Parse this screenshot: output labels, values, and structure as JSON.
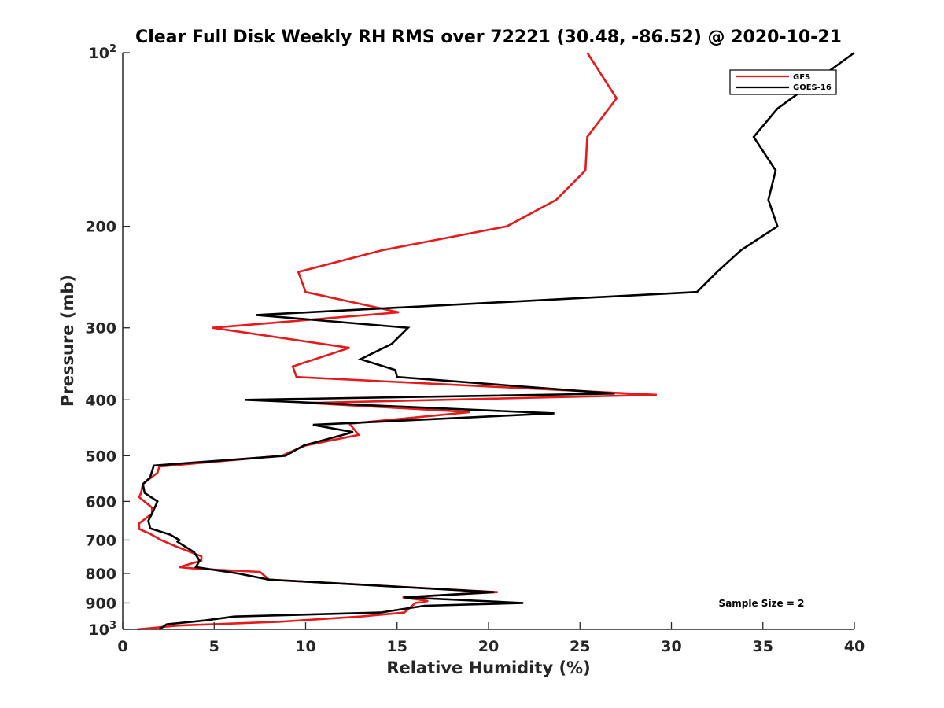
{
  "chart_data": {
    "type": "line",
    "title": "Clear Full Disk Weekly RH RMS over 72221 (30.48, -86.52) @ 2020-10-21",
    "xlabel": "Relative Humidity (%)",
    "ylabel": "Pressure (mb)",
    "xlim": [
      0,
      40
    ],
    "ylim": [
      1000,
      100
    ],
    "yscale": "log",
    "y_reversed": true,
    "grid": false,
    "legend_position": "top-right",
    "x_ticks": [
      0,
      5,
      10,
      15,
      20,
      25,
      30,
      35,
      40
    ],
    "x_tick_labels": [
      "0",
      "5",
      "10",
      "15",
      "20",
      "25",
      "30",
      "35",
      "40"
    ],
    "y_ticks": [
      1000,
      900,
      800,
      700,
      600,
      500,
      400,
      300,
      200,
      100
    ],
    "y_tick_labels": [
      {
        "base": "10",
        "exp": "3"
      },
      {
        "base": "900",
        "exp": ""
      },
      {
        "base": "800",
        "exp": ""
      },
      {
        "base": "700",
        "exp": ""
      },
      {
        "base": "600",
        "exp": ""
      },
      {
        "base": "500",
        "exp": ""
      },
      {
        "base": "400",
        "exp": ""
      },
      {
        "base": "300",
        "exp": ""
      },
      {
        "base": "200",
        "exp": ""
      },
      {
        "base": "10",
        "exp": "2"
      }
    ],
    "annotation": "Sample Size = 2",
    "series": [
      {
        "name": "GFS",
        "color": "#e41a1c",
        "points": [
          [
            25.4,
            100
          ],
          [
            27.0,
            120
          ],
          [
            25.4,
            140
          ],
          [
            25.3,
            160
          ],
          [
            23.7,
            180
          ],
          [
            21.0,
            200
          ],
          [
            14.2,
            220
          ],
          [
            9.6,
            240
          ],
          [
            10.0,
            260
          ],
          [
            15.1,
            282
          ],
          [
            4.9,
            300
          ],
          [
            12.4,
            325
          ],
          [
            9.3,
            350
          ],
          [
            9.5,
            365
          ],
          [
            29.2,
            392
          ],
          [
            10.2,
            405
          ],
          [
            19.0,
            420
          ],
          [
            12.4,
            440
          ],
          [
            12.9,
            460
          ],
          [
            10.0,
            480
          ],
          [
            8.7,
            500
          ],
          [
            2.0,
            522
          ],
          [
            1.9,
            535
          ],
          [
            1.1,
            560
          ],
          [
            1.0,
            580
          ],
          [
            0.9,
            590
          ],
          [
            1.6,
            615
          ],
          [
            1.6,
            630
          ],
          [
            0.9,
            655
          ],
          [
            0.9,
            670
          ],
          [
            1.5,
            683
          ],
          [
            2.1,
            700
          ],
          [
            3.0,
            720
          ],
          [
            4.3,
            747
          ],
          [
            4.3,
            760
          ],
          [
            3.1,
            780
          ],
          [
            4.0,
            785
          ],
          [
            7.5,
            795
          ],
          [
            8.0,
            820
          ],
          [
            20.5,
            862
          ],
          [
            15.3,
            880
          ],
          [
            16.7,
            893
          ],
          [
            16.0,
            900
          ],
          [
            15.4,
            935
          ],
          [
            13.0,
            950
          ],
          [
            8.6,
            970
          ],
          [
            3.0,
            985
          ],
          [
            0.8,
            1000
          ]
        ]
      },
      {
        "name": "GOES-16",
        "color": "#000000",
        "points": [
          [
            40.0,
            100
          ],
          [
            35.8,
            125
          ],
          [
            34.5,
            140
          ],
          [
            35.7,
            160
          ],
          [
            35.3,
            180
          ],
          [
            35.8,
            200
          ],
          [
            33.8,
            220
          ],
          [
            32.5,
            240
          ],
          [
            31.4,
            260
          ],
          [
            7.3,
            285
          ],
          [
            15.6,
            300
          ],
          [
            14.7,
            320
          ],
          [
            13.0,
            340
          ],
          [
            14.9,
            355
          ],
          [
            15.0,
            365
          ],
          [
            26.9,
            390
          ],
          [
            6.7,
            400
          ],
          [
            23.6,
            422
          ],
          [
            10.4,
            442
          ],
          [
            12.6,
            455
          ],
          [
            9.9,
            480
          ],
          [
            8.9,
            500
          ],
          [
            1.7,
            520
          ],
          [
            1.5,
            545
          ],
          [
            1.1,
            560
          ],
          [
            1.2,
            580
          ],
          [
            1.9,
            600
          ],
          [
            1.6,
            630
          ],
          [
            1.4,
            648
          ],
          [
            1.5,
            668
          ],
          [
            2.6,
            685
          ],
          [
            3.1,
            700
          ],
          [
            3.0,
            705
          ],
          [
            3.9,
            735
          ],
          [
            4.2,
            760
          ],
          [
            4.0,
            780
          ],
          [
            6.3,
            800
          ],
          [
            8.0,
            820
          ],
          [
            20.3,
            862
          ],
          [
            15.4,
            880
          ],
          [
            21.9,
            900
          ],
          [
            16.5,
            910
          ],
          [
            14.1,
            935
          ],
          [
            6.1,
            950
          ],
          [
            4.5,
            965
          ],
          [
            2.4,
            980
          ],
          [
            2.2,
            990
          ],
          [
            2.0,
            1000
          ]
        ]
      }
    ]
  }
}
